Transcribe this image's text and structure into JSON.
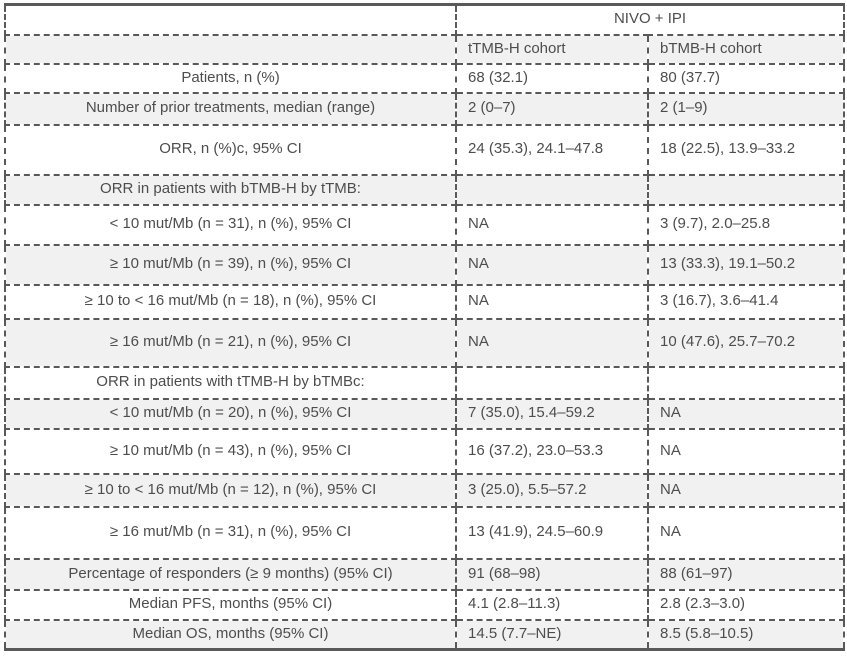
{
  "table": {
    "treatment_group_header": "NIVO + IPI",
    "columns": {
      "ttmb": "tTMB-H cohort",
      "btmb": "bTMB-H cohort"
    },
    "rows": [
      {
        "label": "Patients, n (%)",
        "ttmb": "68 (32.1)",
        "btmb": "80 (37.7)"
      },
      {
        "label": "Number of prior treatments, median (range)",
        "ttmb": "2 (0–7)",
        "btmb": "2 (1–9)"
      },
      {
        "label": "ORR, n (%)c, 95% CI",
        "ttmb": "24 (35.3), 24.1–47.8",
        "btmb": "18 (22.5), 13.9–33.2"
      },
      {
        "label": "ORR in patients with bTMB-H by tTMB:",
        "ttmb": "",
        "btmb": ""
      },
      {
        "label": "< 10 mut/Mb (n = 31), n (%), 95% CI",
        "ttmb": "NA",
        "btmb": "3 (9.7), 2.0–25.8"
      },
      {
        "label": "≥ 10 mut/Mb (n = 39), n (%), 95% CI",
        "ttmb": "NA",
        "btmb": "13 (33.3), 19.1–50.2"
      },
      {
        "label": "≥ 10 to < 16 mut/Mb (n = 18), n (%), 95% CI",
        "ttmb": "NA",
        "btmb": "3 (16.7), 3.6–41.4"
      },
      {
        "label": "≥ 16 mut/Mb (n = 21), n (%), 95% CI",
        "ttmb": "NA",
        "btmb": "10 (47.6), 25.7–70.2"
      },
      {
        "label": "ORR in patients with tTMB-H by bTMBc:",
        "ttmb": "",
        "btmb": ""
      },
      {
        "label": "< 10 mut/Mb (n = 20), n (%), 95% CI",
        "ttmb": "7 (35.0), 15.4–59.2",
        "btmb": "NA"
      },
      {
        "label": "≥ 10 mut/Mb (n = 43), n (%), 95% CI",
        "ttmb": "16 (37.2), 23.0–53.3",
        "btmb": "NA"
      },
      {
        "label": "≥ 10 to < 16 mut/Mb (n = 12), n (%), 95% CI",
        "ttmb": "3 (25.0), 5.5–57.2",
        "btmb": "NA"
      },
      {
        "label": "≥ 16 mut/Mb (n = 31), n (%), 95% CI",
        "ttmb": "13 (41.9), 24.5–60.9",
        "btmb": "NA"
      },
      {
        "label": "Percentage of responders (≥ 9 months) (95% CI)",
        "ttmb": "91 (68–98)",
        "btmb": "88 (61–97)"
      },
      {
        "label": "Median PFS, months (95% CI)",
        "ttmb": "4.1 (2.8–11.3)",
        "btmb": "2.8 (2.3–3.0)"
      },
      {
        "label": "Median OS, months (95% CI)",
        "ttmb": "14.5 (7.7–NE)",
        "btmb": "8.5 (5.8–10.5)"
      }
    ],
    "colors": {
      "stripe_background": "#f1f1f1",
      "border": "#595959",
      "text": "#4d4d4d"
    }
  }
}
